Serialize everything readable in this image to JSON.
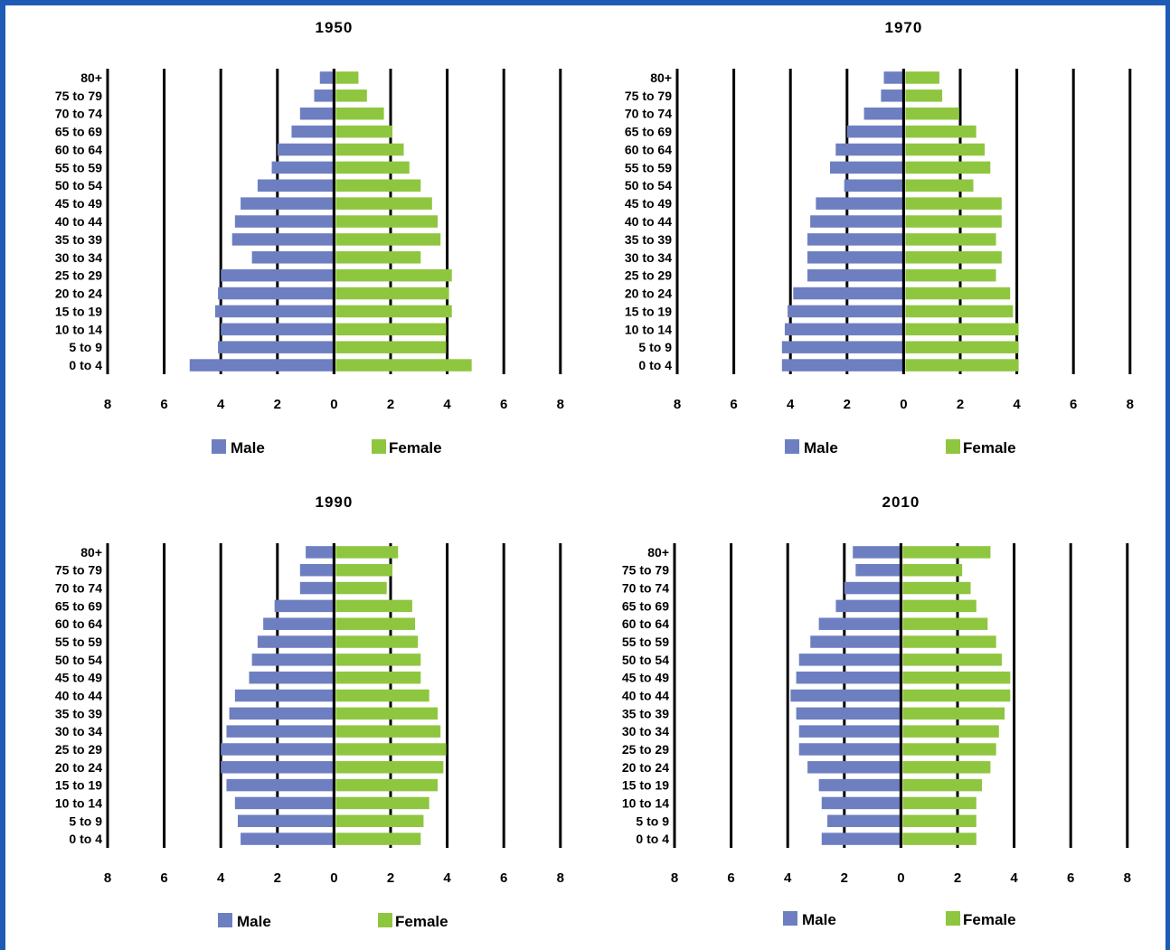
{
  "colors": {
    "male": "#6d7fc1",
    "female": "#8fc63f",
    "border": "#1f5ab5"
  },
  "chart_data": [
    {
      "type": "bar",
      "title": "1950",
      "categories": [
        "80+",
        "75 to 79",
        "70 to 74",
        "65 to 69",
        "60 to 64",
        "55 to 59",
        "50 to 54",
        "45 to 49",
        "40 to 44",
        "35 to 39",
        "30 to 34",
        "25 to 29",
        "20 to 24",
        "15 to 19",
        "10 to 14",
        "5 to 9",
        "0 to 4"
      ],
      "series": [
        {
          "name": "Male",
          "values": [
            0.5,
            0.7,
            1.2,
            1.5,
            2.0,
            2.2,
            2.7,
            3.3,
            3.5,
            3.6,
            2.9,
            4.0,
            4.1,
            4.2,
            4.0,
            4.1,
            5.1
          ]
        },
        {
          "name": "Female",
          "values": [
            0.8,
            1.1,
            1.7,
            2.0,
            2.4,
            2.6,
            3.0,
            3.4,
            3.6,
            3.7,
            3.0,
            4.1,
            4.0,
            4.1,
            3.9,
            3.9,
            4.8
          ]
        }
      ],
      "ticks": [
        "8",
        "6",
        "4",
        "2",
        "0",
        "2",
        "4",
        "6",
        "8"
      ],
      "xlim": [
        -8,
        8
      ],
      "legend": "bottom"
    },
    {
      "type": "bar",
      "title": "1970",
      "categories": [
        "80+",
        "75 to 79",
        "70 to 74",
        "65 to 69",
        "60 to 64",
        "55 to 59",
        "50 to 54",
        "45 to 49",
        "40 to 44",
        "35 to 39",
        "30 to 34",
        "25 to 29",
        "20 to 24",
        "15 to 19",
        "10 to 14",
        "5 to 9",
        "0 to 4"
      ],
      "series": [
        {
          "name": "Male",
          "values": [
            0.7,
            0.8,
            1.4,
            2.0,
            2.4,
            2.6,
            2.1,
            3.1,
            3.3,
            3.4,
            3.4,
            3.4,
            3.9,
            4.1,
            4.2,
            4.3,
            4.3
          ]
        },
        {
          "name": "Female",
          "values": [
            1.2,
            1.3,
            1.9,
            2.5,
            2.8,
            3.0,
            2.4,
            3.4,
            3.4,
            3.2,
            3.4,
            3.2,
            3.7,
            3.8,
            4.0,
            4.0,
            4.0
          ]
        }
      ],
      "ticks": [
        "8",
        "6",
        "4",
        "2",
        "0",
        "2",
        "4",
        "6",
        "8"
      ],
      "xlim": [
        -8,
        8
      ],
      "legend": "bottom"
    },
    {
      "type": "bar",
      "title": "1990",
      "categories": [
        "80+",
        "75 to 79",
        "70 to 74",
        "65 to 69",
        "60 to 64",
        "55 to 59",
        "50 to 54",
        "45 to 49",
        "40 to 44",
        "35 to 39",
        "30 to 34",
        "25 to 29",
        "20 to 24",
        "15 to 19",
        "10 to 14",
        "5 to 9",
        "0 to 4"
      ],
      "series": [
        {
          "name": "Male",
          "values": [
            1.0,
            1.2,
            1.2,
            2.1,
            2.5,
            2.7,
            2.9,
            3.0,
            3.5,
            3.7,
            3.8,
            4.0,
            4.0,
            3.8,
            3.5,
            3.4,
            3.3
          ]
        },
        {
          "name": "Female",
          "values": [
            2.2,
            2.0,
            1.8,
            2.7,
            2.8,
            2.9,
            3.0,
            3.0,
            3.3,
            3.6,
            3.7,
            3.9,
            3.8,
            3.6,
            3.3,
            3.1,
            3.0
          ]
        }
      ],
      "ticks": [
        "8",
        "6",
        "4",
        "2",
        "0",
        "2",
        "4",
        "6",
        "8"
      ],
      "xlim": [
        -8,
        8
      ],
      "legend": "bottom"
    },
    {
      "type": "bar",
      "title": "2010",
      "categories": [
        "80+",
        "75 to 79",
        "70 to 74",
        "65 to 69",
        "60 to 64",
        "55 to 59",
        "50 to 54",
        "45 to 49",
        "40 to 44",
        "35 to 39",
        "30 to 34",
        "25 to 29",
        "20 to 24",
        "15 to 19",
        "10 to 14",
        "5 to 9",
        "0 to 4"
      ],
      "series": [
        {
          "name": "Male",
          "values": [
            1.7,
            1.6,
            2.0,
            2.3,
            2.9,
            3.2,
            3.6,
            3.7,
            3.9,
            3.7,
            3.6,
            3.6,
            3.3,
            2.9,
            2.8,
            2.6,
            2.8
          ]
        },
        {
          "name": "Female",
          "values": [
            3.1,
            2.1,
            2.4,
            2.6,
            3.0,
            3.3,
            3.5,
            3.8,
            3.8,
            3.6,
            3.4,
            3.3,
            3.1,
            2.8,
            2.6,
            2.6,
            2.6
          ]
        }
      ],
      "ticks": [
        "8",
        "6",
        "4",
        "2",
        "0",
        "2",
        "4",
        "6",
        "8"
      ],
      "xlim": [
        -8,
        8
      ],
      "legend": "bottom"
    }
  ]
}
